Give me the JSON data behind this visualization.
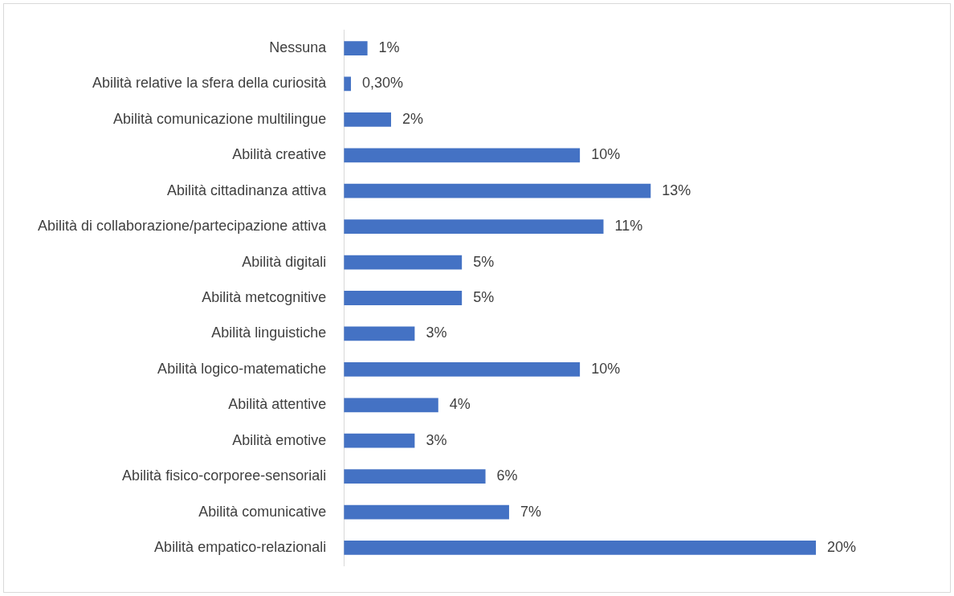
{
  "chart_data": {
    "type": "bar",
    "orientation": "horizontal",
    "categories": [
      "Nessuna",
      "Abilità relative la sfera della curiosità",
      "Abilità comunicazione multilingue",
      "Abilità creative",
      "Abilità cittadinanza attiva",
      "Abilità di collaborazione/partecipazione attiva",
      "Abilità digitali",
      "Abilità metcognitive",
      "Abilità linguistiche",
      "Abilità logico-matematiche",
      "Abilità attentive",
      "Abilità emotive",
      "Abilità fisico-corporee-sensoriali",
      "Abilità comunicative",
      "Abilità empatico-relazionali"
    ],
    "values": [
      1,
      0.3,
      2,
      10,
      13,
      11,
      5,
      5,
      3,
      10,
      4,
      3,
      6,
      7,
      20
    ],
    "value_labels": [
      "1%",
      "0,30%",
      "2%",
      "10%",
      "13%",
      "11%",
      "5%",
      "5%",
      "3%",
      "10%",
      "4%",
      "3%",
      "6%",
      "7%",
      "20%"
    ],
    "color": "#4472c4",
    "grid": false,
    "legend": false,
    "tick_labels": "y"
  }
}
